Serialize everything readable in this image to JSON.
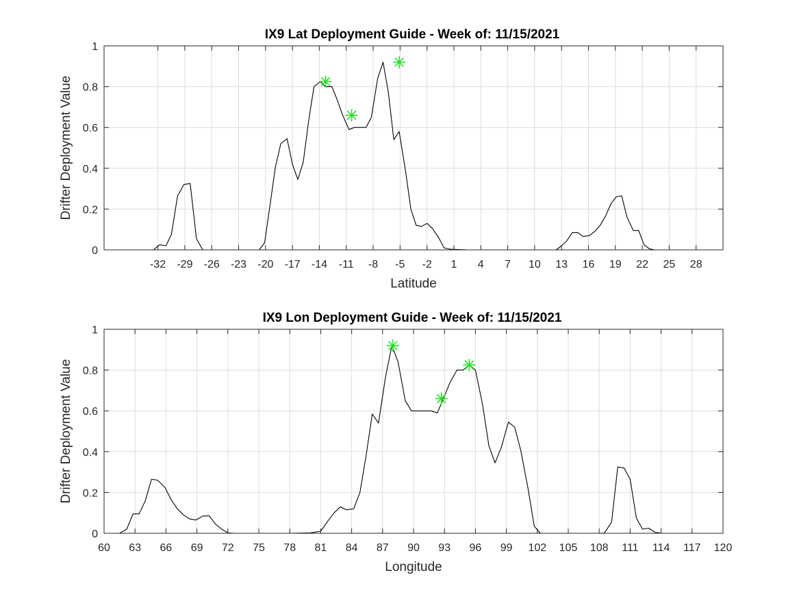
{
  "chart_data": [
    {
      "type": "line",
      "title": "IX9 Lat Deployment Guide - Week of: 11/15/2021",
      "xlabel": "Latitude",
      "ylabel": "Drifter Deployment Value",
      "xlim": [
        -38,
        31
      ],
      "ylim": [
        0,
        1
      ],
      "xticks": [
        -32,
        -29,
        -26,
        -23,
        -20,
        -17,
        -14,
        -11,
        -8,
        -5,
        -2,
        1,
        4,
        7,
        10,
        13,
        16,
        19,
        22,
        25,
        28
      ],
      "xtick_labels": [
        "-32",
        "-29",
        "-26",
        "-23",
        "-20",
        "-17",
        "-14",
        "-11",
        "-8",
        "-5",
        "-2",
        "1",
        "4",
        "7",
        "10",
        "13",
        "16",
        "19",
        "22",
        "25",
        "28"
      ],
      "yticks": [
        0,
        0.2,
        0.4,
        0.6,
        0.8,
        1
      ],
      "ytick_labels": [
        "0",
        "0.2",
        "0.4",
        "0.6",
        "0.8",
        "1"
      ],
      "grid": true,
      "series": [
        {
          "color": "#000000",
          "x": [
            -38,
            -32.5,
            -31.8,
            -31.1,
            -30.5,
            -29.8,
            -29.1,
            -28.4,
            -27.7,
            -27.0,
            -26.3,
            -25.6,
            -20.7,
            -20.1,
            -19.5,
            -18.9,
            -18.3,
            -17.6,
            -17.0,
            -16.4,
            -15.8,
            -15.2,
            -14.6,
            -13.9,
            -13.3,
            -12.6,
            -12.0,
            -11.4,
            -10.7,
            -10.1,
            -9.5,
            -8.8,
            -8.2,
            -7.5,
            -6.9,
            -6.3,
            -5.7,
            -5.1,
            -4.4,
            -3.8,
            -3.2,
            -2.6,
            -2.0,
            -1.4,
            -0.7,
            -0.1,
            0.6,
            1.3,
            1.9,
            2.6,
            3.2,
            3.9,
            5.0,
            7.0,
            10.0,
            12.4,
            13.0,
            13.6,
            14.2,
            14.8,
            15.4,
            16.1,
            16.7,
            17.3,
            17.9,
            18.5,
            19.1,
            19.7,
            20.3,
            21.0,
            21.6,
            22.2,
            22.8,
            23.4,
            24.1,
            31
          ],
          "y": [
            0,
            0,
            0.025,
            0.02,
            0.075,
            0.265,
            0.32,
            0.325,
            0.055,
            0,
            0,
            0,
            0,
            0.035,
            0.22,
            0.405,
            0.52,
            0.545,
            0.42,
            0.345,
            0.43,
            0.63,
            0.8,
            0.825,
            0.8,
            0.8,
            0.735,
            0.66,
            0.59,
            0.6,
            0.6,
            0.6,
            0.65,
            0.84,
            0.92,
            0.77,
            0.54,
            0.58,
            0.39,
            0.2,
            0.12,
            0.115,
            0.13,
            0.105,
            0.06,
            0.01,
            0.003,
            0.002,
            0.001,
            0,
            0,
            0,
            0,
            0,
            0,
            0,
            0.02,
            0.045,
            0.085,
            0.085,
            0.065,
            0.07,
            0.09,
            0.12,
            0.165,
            0.225,
            0.26,
            0.265,
            0.16,
            0.095,
            0.095,
            0.025,
            0.005,
            0,
            0,
            0
          ]
        }
      ],
      "markers": {
        "color": "#1fe01f",
        "style": "asterisk",
        "x": [
          -13.3,
          -10.4,
          -5.1
        ],
        "y": [
          0.825,
          0.66,
          0.92
        ]
      }
    },
    {
      "type": "line",
      "title": "IX9 Lon Deployment Guide - Week of: 11/15/2021",
      "xlabel": "Longitude",
      "ylabel": "Drifter Deployment Value",
      "xlim": [
        60,
        120
      ],
      "ylim": [
        0,
        1
      ],
      "xticks": [
        60,
        63,
        66,
        69,
        72,
        75,
        78,
        81,
        84,
        87,
        90,
        93,
        96,
        99,
        102,
        105,
        108,
        111,
        114,
        117,
        120
      ],
      "xtick_labels": [
        "60",
        "63",
        "66",
        "69",
        "72",
        "75",
        "78",
        "81",
        "84",
        "87",
        "90",
        "93",
        "96",
        "99",
        "102",
        "105",
        "108",
        "111",
        "114",
        "117",
        "120"
      ],
      "yticks": [
        0,
        0.2,
        0.4,
        0.6,
        0.8,
        1
      ],
      "ytick_labels": [
        "0",
        "0.2",
        "0.4",
        "0.6",
        "0.8",
        "1"
      ],
      "grid": true,
      "series": [
        {
          "color": "#000000",
          "x": [
            61.5,
            62.2,
            62.8,
            63.4,
            64.0,
            64.6,
            65.2,
            65.9,
            66.5,
            67.1,
            67.7,
            68.3,
            68.9,
            69.6,
            70.2,
            70.8,
            71.4,
            72.0,
            72.6,
            73.2,
            76.0,
            78.0,
            80.0,
            81.0,
            81.7,
            82.3,
            82.9,
            83.5,
            84.2,
            84.8,
            85.4,
            86.0,
            86.6,
            87.3,
            87.9,
            88.5,
            89.2,
            89.8,
            90.4,
            91.0,
            91.7,
            92.3,
            92.9,
            93.5,
            94.2,
            94.8,
            95.4,
            96.0,
            96.7,
            97.3,
            97.9,
            98.5,
            99.2,
            99.8,
            100.4,
            101.1,
            101.7,
            102.3,
            103.0,
            105.0,
            108.0,
            108.5,
            109.2,
            109.8,
            110.4,
            111.0,
            111.6,
            112.2,
            112.8,
            113.4,
            114.1,
            114.7
          ],
          "y": [
            0,
            0.02,
            0.095,
            0.095,
            0.16,
            0.265,
            0.26,
            0.225,
            0.165,
            0.12,
            0.09,
            0.07,
            0.065,
            0.085,
            0.085,
            0.045,
            0.02,
            0.002,
            0,
            0,
            0,
            0,
            0.002,
            0.01,
            0.06,
            0.1,
            0.13,
            0.115,
            0.12,
            0.2,
            0.38,
            0.585,
            0.54,
            0.77,
            0.92,
            0.84,
            0.65,
            0.6,
            0.6,
            0.6,
            0.6,
            0.59,
            0.66,
            0.735,
            0.8,
            0.8,
            0.825,
            0.8,
            0.63,
            0.43,
            0.345,
            0.42,
            0.545,
            0.52,
            0.405,
            0.22,
            0.035,
            0,
            0,
            0,
            0,
            0.001,
            0.055,
            0.325,
            0.32,
            0.265,
            0.075,
            0.02,
            0.025,
            0.005,
            0,
            0
          ]
        }
      ],
      "markers": {
        "color": "#1fe01f",
        "style": "asterisk",
        "x": [
          88.0,
          92.7,
          95.4
        ],
        "y": [
          0.92,
          0.66,
          0.825
        ]
      }
    }
  ]
}
